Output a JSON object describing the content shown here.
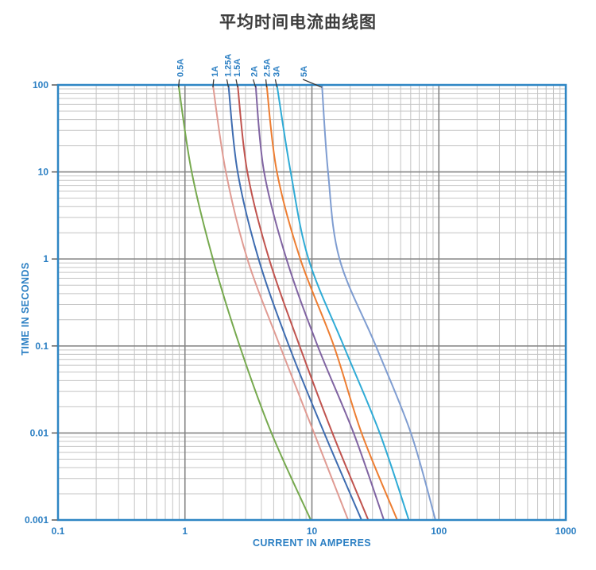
{
  "title": "平均时间电流曲线图",
  "chart_data": {
    "type": "line",
    "title": "平均时间电流曲线图",
    "x_axis": {
      "label": "CURRENT IN AMPERES",
      "scale": "log",
      "min": 0.1,
      "max": 1000,
      "ticks": [
        "0.1",
        "1",
        "10",
        "100",
        "1000"
      ]
    },
    "y_axis": {
      "label": "TIME IN SECONDS",
      "scale": "log",
      "min": 0.001,
      "max": 100,
      "ticks": [
        "100",
        "10",
        "1",
        "0.1",
        "0.01",
        "0.001"
      ]
    },
    "grid": "log minor and major gridlines, both axes",
    "legend_position": "labels above curves, rotated 90deg",
    "series": [
      {
        "name": "0.5A",
        "color": "#76A94E",
        "label_dx": 3,
        "points": [
          [
            0.89,
            100
          ],
          [
            1.13,
            10
          ],
          [
            1.66,
            1
          ],
          [
            2.7,
            0.1
          ],
          [
            4.8,
            0.01
          ],
          [
            9.8,
            0.001
          ]
        ]
      },
      {
        "name": "1A",
        "color": "#E09B93",
        "label_dx": 3,
        "points": [
          [
            1.66,
            100
          ],
          [
            2.1,
            10
          ],
          [
            3.1,
            1
          ],
          [
            5.6,
            0.1
          ],
          [
            10.4,
            0.01
          ],
          [
            19.3,
            0.001
          ]
        ]
      },
      {
        "name": "1.25A",
        "color": "#3E6CB0",
        "label_dx": 0,
        "points": [
          [
            2.2,
            100
          ],
          [
            2.6,
            10
          ],
          [
            3.8,
            1
          ],
          [
            6.6,
            0.1
          ],
          [
            12.5,
            0.01
          ],
          [
            24.6,
            0.001
          ]
        ]
      },
      {
        "name": "1.5A",
        "color": "#C0534E",
        "label_dx": 0,
        "points": [
          [
            2.6,
            100
          ],
          [
            3.1,
            10
          ],
          [
            4.6,
            1
          ],
          [
            8.0,
            0.1
          ],
          [
            14.5,
            0.01
          ],
          [
            27.8,
            0.001
          ]
        ]
      },
      {
        "name": "2A",
        "color": "#8064A2",
        "label_dx": -1,
        "points": [
          [
            3.6,
            100
          ],
          [
            4.2,
            10
          ],
          [
            6.3,
            1
          ],
          [
            11.1,
            0.1
          ],
          [
            21.3,
            0.01
          ],
          [
            36.9,
            0.001
          ]
        ]
      },
      {
        "name": "2.5A",
        "color": "#ED7D31",
        "label_dx": 1,
        "points": [
          [
            4.4,
            100
          ],
          [
            5.3,
            10
          ],
          [
            8.1,
            1
          ],
          [
            14.9,
            0.1
          ],
          [
            24.6,
            0.01
          ],
          [
            47.0,
            0.001
          ]
        ]
      },
      {
        "name": "3A",
        "color": "#2FABD6",
        "label_dx": 0,
        "points": [
          [
            5.3,
            100
          ],
          [
            6.8,
            10
          ],
          [
            9.4,
            1
          ],
          [
            17.8,
            0.1
          ],
          [
            34.2,
            0.01
          ],
          [
            58.0,
            0.001
          ]
        ]
      },
      {
        "name": "5A",
        "color": "#7F9DD1",
        "label_dx": -22,
        "points": [
          [
            12.0,
            100
          ],
          [
            13.4,
            10
          ],
          [
            16.5,
            1
          ],
          [
            31.9,
            0.1
          ],
          [
            60.2,
            0.01
          ],
          [
            94.0,
            0.001
          ]
        ]
      }
    ],
    "palette": {
      "border": "#2E86C4",
      "axis_text": "#2B7FC3",
      "grid_minor": "#C4C4C4",
      "grid_major": "#858585",
      "leader_line": "#3A3A3A",
      "title_text": "#3D3D3D"
    }
  }
}
